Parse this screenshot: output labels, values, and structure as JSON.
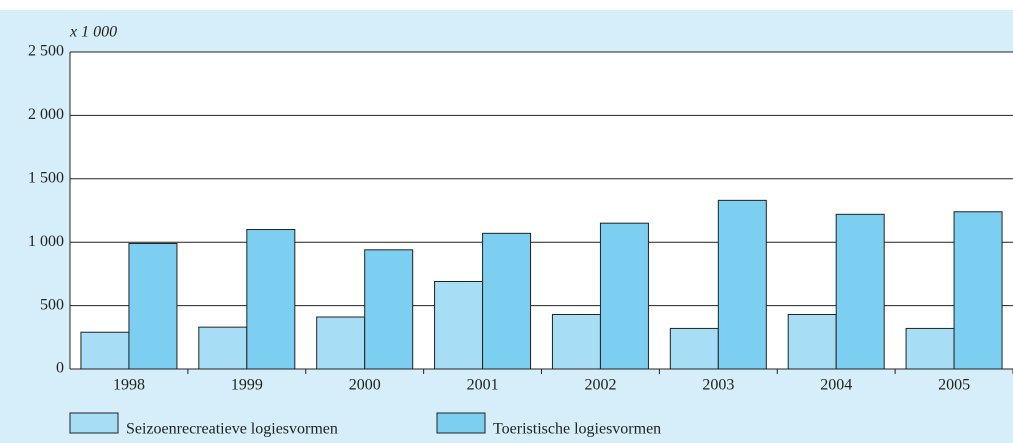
{
  "chart_data": {
    "type": "bar",
    "y_axis_label": "x 1 000",
    "categories": [
      "1998",
      "1999",
      "2000",
      "2001",
      "2002",
      "2003",
      "2004",
      "2005"
    ],
    "series": [
      {
        "name": "Seizoenrecreatieve logiesvormen",
        "color": "#a8ddf6",
        "values": [
          290,
          330,
          410,
          690,
          430,
          320,
          430,
          320
        ]
      },
      {
        "name": "Toeristische logiesvormen",
        "color": "#7ccff1",
        "values": [
          990,
          1100,
          940,
          1070,
          1150,
          1330,
          1220,
          1240
        ]
      }
    ],
    "ylim": [
      0,
      2500
    ],
    "yticks": [
      0,
      500,
      {
        "value": 1000,
        "label": "1 000"
      },
      {
        "value": 1500,
        "label": "1 500"
      },
      {
        "value": 2000,
        "label": "2 000"
      },
      {
        "value": 2500,
        "label": "2 500"
      }
    ],
    "grid": true
  }
}
